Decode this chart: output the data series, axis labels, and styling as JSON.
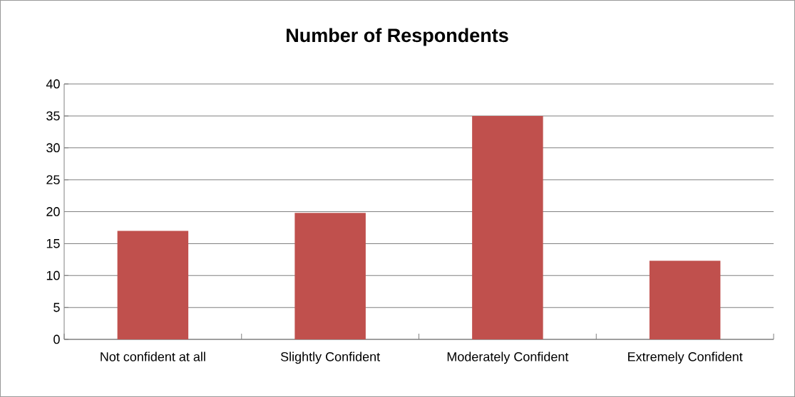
{
  "chart_data": {
    "type": "bar",
    "title": "Number of Respondents",
    "categories": [
      "Not confident at all",
      "Slightly Confident",
      "Moderately Confident",
      "Extremely Confident"
    ],
    "values": [
      17,
      19.8,
      35,
      12.3
    ],
    "color": "#c0504d",
    "ylim": [
      0,
      40
    ],
    "yticks": [
      0,
      5,
      10,
      15,
      20,
      25,
      30,
      35,
      40
    ],
    "grid": "y"
  }
}
